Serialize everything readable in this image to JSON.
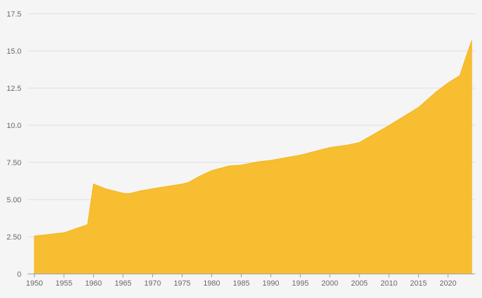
{
  "chart_data": {
    "type": "area",
    "title": "",
    "xlabel": "",
    "ylabel": "",
    "x": [
      1950,
      1955,
      1959,
      1960,
      1962,
      1965,
      1966,
      1968,
      1970,
      1975,
      1976,
      1978,
      1980,
      1983,
      1985,
      1988,
      1990,
      1995,
      2000,
      2003,
      2005,
      2010,
      2015,
      2018,
      2020,
      2022,
      2023,
      2024
    ],
    "series": [
      {
        "values": [
          2.55,
          2.77,
          3.32,
          6.05,
          5.73,
          5.43,
          5.4,
          5.59,
          5.73,
          6.05,
          6.14,
          6.58,
          6.95,
          7.27,
          7.32,
          7.55,
          7.64,
          7.99,
          8.5,
          8.67,
          8.84,
          9.98,
          11.2,
          12.25,
          12.85,
          13.34,
          14.55,
          15.7
        ]
      }
    ],
    "ylim": [
      0,
      17.5
    ],
    "y_ticks": [
      "0",
      "2.50",
      "5.00",
      "7.50",
      "10.0",
      "12.5",
      "15.0",
      "17.5"
    ],
    "y_tick_values": [
      0,
      2.5,
      5.0,
      7.5,
      10.0,
      12.5,
      15.0,
      17.5
    ],
    "x_ticks": [
      "1950",
      "1955",
      "1960",
      "1965",
      "1970",
      "1975",
      "1980",
      "1985",
      "1990",
      "1995",
      "2000",
      "2005",
      "2010",
      "2015",
      "2020"
    ],
    "x_tick_values": [
      1950,
      1955,
      1960,
      1965,
      1970,
      1975,
      1980,
      1985,
      1990,
      1995,
      2000,
      2005,
      2010,
      2015,
      2020
    ],
    "xlim": [
      1950,
      2024
    ],
    "grid": true,
    "legend": "none",
    "colors": {
      "area_fill": "#f8b81c",
      "area_stroke": "#f5b51a",
      "grid": "#dedede",
      "background": "#f5f5f5",
      "tick_text": "#666666"
    }
  }
}
